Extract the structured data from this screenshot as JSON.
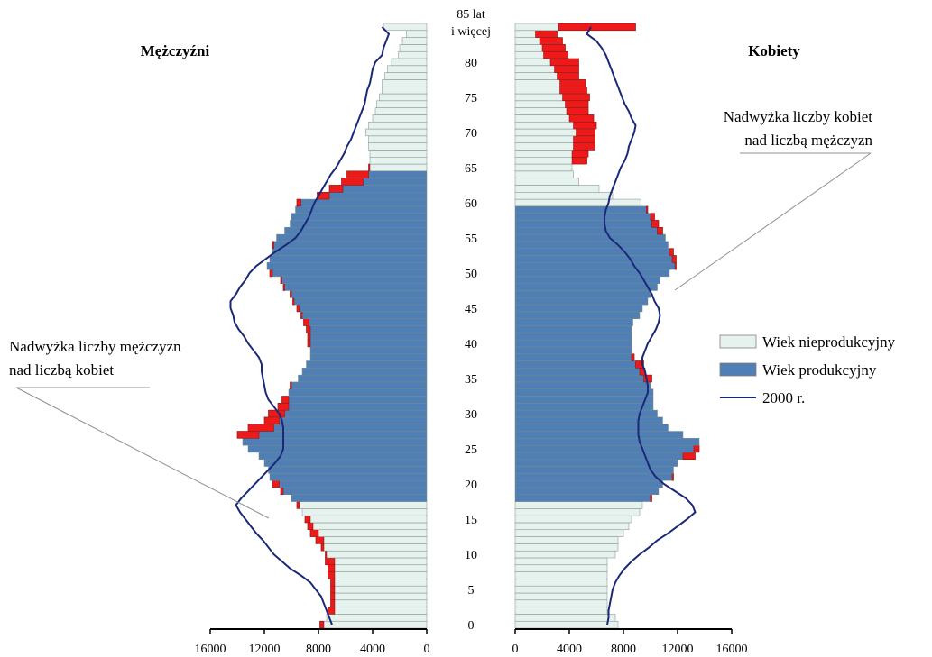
{
  "chart_data": {
    "type": "bar",
    "subtype": "population-pyramid",
    "title": "",
    "left_panel_title": "Mężczyźni",
    "right_panel_title": "Kobiety",
    "age_axis_top_label": [
      "85 lat",
      "i więcej"
    ],
    "age_tick_labels": [
      "0",
      "5",
      "10",
      "15",
      "20",
      "25",
      "30",
      "35",
      "40",
      "45",
      "50",
      "55",
      "60",
      "65",
      "70",
      "75",
      "80"
    ],
    "x_ticks_left": [
      "16000",
      "12000",
      "8000",
      "4000",
      "0"
    ],
    "x_ticks_right": [
      "0",
      "4000",
      "8000",
      "12000",
      "16000"
    ],
    "xlim": [
      0,
      16000
    ],
    "annotations": {
      "men_surplus": [
        "Nadwyżka liczby mężczyzn",
        "nad liczbą kobiet"
      ],
      "women_surplus": [
        "Nadwyżka liczby kobiet",
        "nad liczbą mężczyzn"
      ]
    },
    "legend": {
      "position": "right",
      "items": [
        {
          "label": "Wiek nieprodukcyjny",
          "kind": "bar",
          "color": "#e6f2ee"
        },
        {
          "label": "Wiek produkcyjny",
          "kind": "bar",
          "color": "#4f7fb5"
        },
        {
          "label": "2000 r.",
          "kind": "line",
          "color": "#1a2878"
        }
      ]
    },
    "colors": {
      "nonproductive": "#e6f2ee",
      "productive": "#4f7fb5",
      "surplus": "#ee1a1a",
      "line2000": "#1a2878"
    },
    "productive_age_men": [
      18,
      64
    ],
    "productive_age_women": [
      18,
      59
    ],
    "ages": [
      0,
      1,
      2,
      3,
      4,
      5,
      6,
      7,
      8,
      9,
      10,
      11,
      12,
      13,
      14,
      15,
      16,
      17,
      18,
      19,
      20,
      21,
      22,
      23,
      24,
      25,
      26,
      27,
      28,
      29,
      30,
      31,
      32,
      33,
      34,
      35,
      36,
      37,
      38,
      39,
      40,
      41,
      42,
      43,
      44,
      45,
      46,
      47,
      48,
      49,
      50,
      51,
      52,
      53,
      54,
      55,
      56,
      57,
      58,
      59,
      60,
      61,
      62,
      63,
      64,
      65,
      66,
      67,
      68,
      69,
      70,
      71,
      72,
      73,
      74,
      75,
      76,
      77,
      78,
      79,
      80,
      81,
      82,
      83,
      84,
      "85+"
    ],
    "series": [
      {
        "name": "Mężczyźni",
        "values": [
          7900,
          7400,
          7300,
          7100,
          7100,
          7100,
          7100,
          7300,
          7300,
          7500,
          7500,
          7800,
          8200,
          8600,
          8800,
          9000,
          9200,
          9600,
          10000,
          10800,
          11400,
          11600,
          11700,
          12000,
          12400,
          13200,
          13600,
          14000,
          13200,
          12000,
          11700,
          11000,
          10700,
          10200,
          10100,
          9500,
          9200,
          8900,
          8600,
          8600,
          8800,
          8800,
          8900,
          9100,
          9300,
          9600,
          9900,
          10100,
          10600,
          10800,
          11600,
          11800,
          11600,
          11400,
          11400,
          11100,
          10500,
          10100,
          10000,
          9700,
          9600,
          8100,
          7200,
          6300,
          5900,
          4300,
          4200,
          4200,
          4300,
          4300,
          4500,
          4300,
          4000,
          3800,
          3700,
          3500,
          3300,
          3300,
          3100,
          2900,
          2600,
          2100,
          2000,
          1800,
          1500,
          3200
        ]
      },
      {
        "name": "Kobiety",
        "values": [
          7600,
          7400,
          6800,
          6800,
          6800,
          6800,
          6800,
          6800,
          6800,
          6800,
          7400,
          7600,
          7600,
          8000,
          8400,
          8600,
          9200,
          9400,
          10100,
          10600,
          10900,
          11700,
          11700,
          12000,
          13300,
          13600,
          13600,
          12400,
          11300,
          10900,
          10500,
          10200,
          10200,
          10200,
          10000,
          10100,
          9600,
          9500,
          8800,
          8600,
          8600,
          8600,
          8600,
          8700,
          9200,
          9400,
          9800,
          10000,
          10500,
          10700,
          11400,
          11900,
          11900,
          11700,
          11300,
          11100,
          10900,
          10600,
          10300,
          9800,
          9300,
          7200,
          6200,
          4700,
          4300,
          4200,
          5300,
          5400,
          5900,
          5900,
          5900,
          6000,
          5800,
          5400,
          5400,
          5500,
          5300,
          5200,
          4700,
          4700,
          4700,
          3900,
          3700,
          3500,
          3100,
          8900
        ]
      },
      {
        "name": "2000 r.",
        "type": "line",
        "side": "left",
        "values": [
          7000,
          7200,
          7400,
          7600,
          7800,
          8200,
          8600,
          9300,
          10100,
          10700,
          11300,
          11700,
          12100,
          12600,
          13000,
          13400,
          13800,
          14100,
          13700,
          13200,
          12700,
          12200,
          11700,
          11200,
          10800,
          10600,
          10600,
          10600,
          10600,
          10700,
          10900,
          11300,
          11700,
          11900,
          12000,
          12100,
          12200,
          12200,
          12400,
          12800,
          13200,
          13500,
          13900,
          14200,
          14300,
          14500,
          14500,
          14100,
          13800,
          13400,
          13100,
          12600,
          11900,
          11200,
          10400,
          9700,
          9300,
          9000,
          8700,
          8500,
          8300,
          8000,
          7700,
          7400,
          7100,
          6700,
          6400,
          6100,
          5900,
          5600,
          5400,
          5200,
          5000,
          4800,
          4600,
          4500,
          4400,
          4200,
          4100,
          4000,
          3800,
          3300,
          3200,
          3000,
          2800,
          3300
        ]
      },
      {
        "name": "2000 r.",
        "type": "line",
        "side": "right",
        "values": [
          6800,
          6900,
          6900,
          7000,
          7100,
          7200,
          7400,
          7700,
          8100,
          8600,
          9200,
          9900,
          10500,
          11300,
          12000,
          12700,
          13300,
          13100,
          12600,
          11800,
          11000,
          10400,
          10000,
          9800,
          9600,
          9400,
          9200,
          9100,
          9100,
          9100,
          9200,
          9400,
          9600,
          9800,
          9800,
          9700,
          9600,
          9400,
          9400,
          9600,
          9800,
          10100,
          10400,
          10600,
          10700,
          10600,
          10300,
          10100,
          9800,
          9500,
          9200,
          8800,
          8500,
          8100,
          7600,
          7000,
          6700,
          6600,
          6600,
          6700,
          6900,
          7000,
          7200,
          7400,
          7600,
          7800,
          8100,
          8300,
          8400,
          8600,
          8800,
          8900,
          8600,
          8400,
          8100,
          7900,
          7700,
          7500,
          7300,
          7100,
          6900,
          6700,
          6400,
          6000,
          5300,
          5600
        ]
      }
    ]
  }
}
